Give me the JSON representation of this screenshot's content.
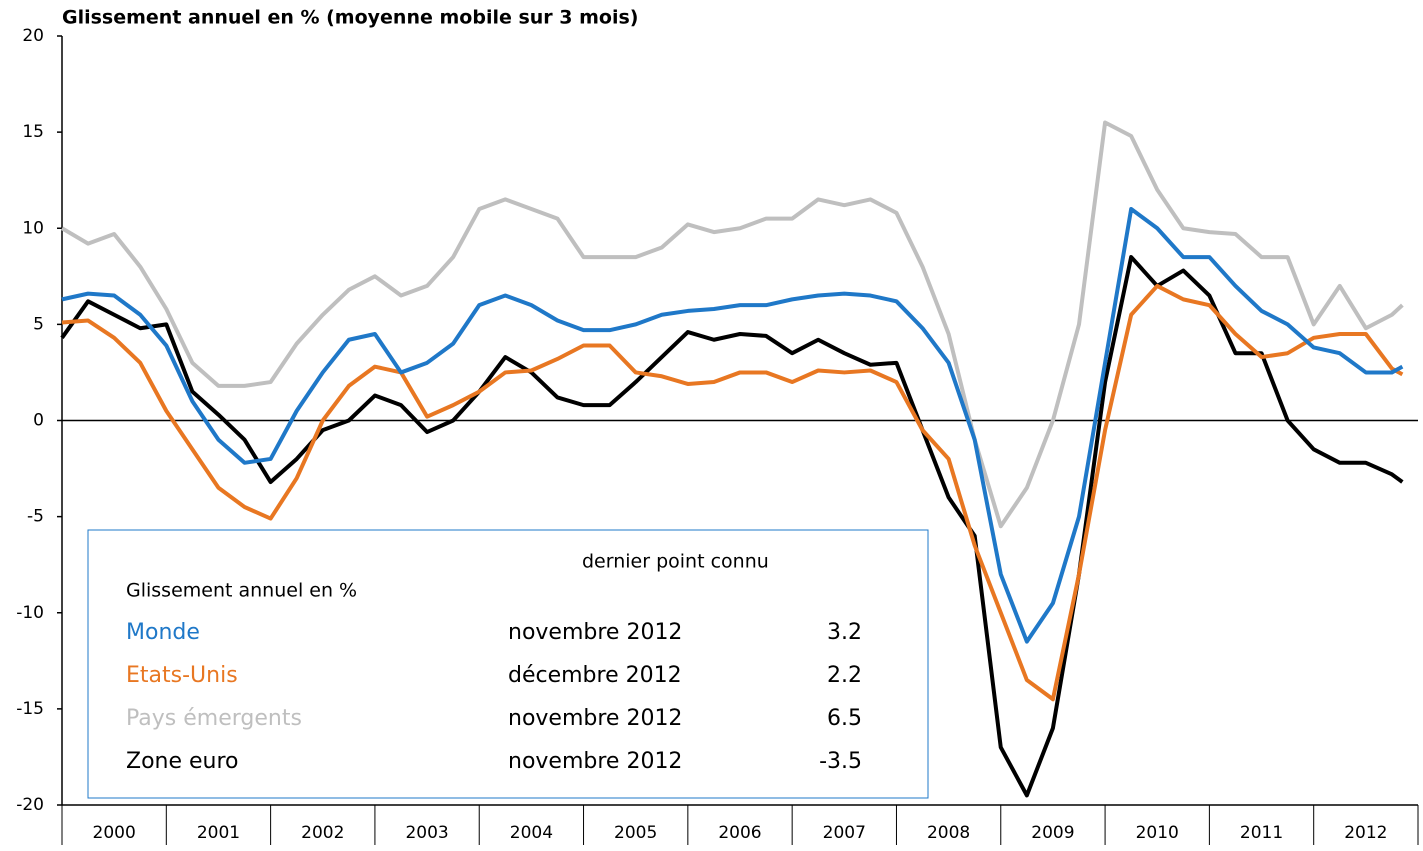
{
  "chart_data": {
    "type": "line",
    "title": "Glissement annuel en %  (moyenne mobile sur 3 mois)",
    "categories": [
      "2000",
      "2001",
      "2002",
      "2003",
      "2004",
      "2005",
      "2006",
      "2007",
      "2008",
      "2009",
      "2010",
      "2011",
      "2012"
    ],
    "x": [
      2000,
      2000.25,
      2000.5,
      2000.75,
      2001,
      2001.25,
      2001.5,
      2001.75,
      2002,
      2002.25,
      2002.5,
      2002.75,
      2003,
      2003.25,
      2003.5,
      2003.75,
      2004,
      2004.25,
      2004.5,
      2004.75,
      2005,
      2005.25,
      2005.5,
      2005.75,
      2006,
      2006.25,
      2006.5,
      2006.75,
      2007,
      2007.25,
      2007.5,
      2007.75,
      2008,
      2008.25,
      2008.5,
      2008.75,
      2009,
      2009.25,
      2009.5,
      2009.75,
      2010,
      2010.25,
      2010.5,
      2010.75,
      2011,
      2011.25,
      2011.5,
      2011.75,
      2012,
      2012.25,
      2012.5,
      2012.75,
      2012.85
    ],
    "series": [
      {
        "name": "Monde",
        "color": "#1f78c8",
        "values": [
          6.3,
          6.6,
          6.5,
          5.5,
          3.9,
          1.0,
          -1.0,
          -2.2,
          -2.0,
          0.5,
          2.5,
          4.2,
          4.5,
          2.5,
          3.0,
          4.0,
          6.0,
          6.5,
          6.0,
          5.2,
          4.7,
          4.7,
          5.0,
          5.5,
          5.7,
          5.8,
          6.0,
          6.0,
          6.3,
          6.5,
          6.6,
          6.5,
          6.2,
          4.8,
          3.0,
          -1.0,
          -8.0,
          -11.5,
          -9.5,
          -5.0,
          3.0,
          11.0,
          10.0,
          8.5,
          8.5,
          7.0,
          5.7,
          5.0,
          3.8,
          3.5,
          2.5,
          2.5,
          2.8
        ]
      },
      {
        "name": "Etats-Unis",
        "color": "#e87722",
        "values": [
          5.1,
          5.2,
          4.3,
          3.0,
          0.5,
          -1.5,
          -3.5,
          -4.5,
          -5.1,
          -3.0,
          0.0,
          1.8,
          2.8,
          2.5,
          0.2,
          0.8,
          1.5,
          2.5,
          2.6,
          3.2,
          3.9,
          3.9,
          2.5,
          2.3,
          1.9,
          2.0,
          2.5,
          2.5,
          2.0,
          2.6,
          2.5,
          2.6,
          2.0,
          -0.5,
          -2.0,
          -6.5,
          -10.0,
          -13.5,
          -14.5,
          -8.0,
          -0.5,
          5.5,
          7.0,
          6.3,
          6.0,
          4.5,
          3.3,
          3.5,
          4.3,
          4.5,
          4.5,
          2.7,
          2.4
        ]
      },
      {
        "name": "Pays émergents",
        "color": "#bfbfbf",
        "values": [
          10.0,
          9.2,
          9.7,
          8.0,
          5.8,
          3.0,
          1.8,
          1.8,
          2.0,
          4.0,
          5.5,
          6.8,
          7.5,
          6.5,
          7.0,
          8.5,
          11.0,
          11.5,
          11.0,
          10.5,
          8.5,
          8.5,
          8.5,
          9.0,
          10.2,
          9.8,
          10.0,
          10.5,
          10.5,
          11.5,
          11.2,
          11.5,
          10.8,
          8.0,
          4.5,
          -1.0,
          -5.5,
          -3.5,
          0.0,
          5.0,
          15.5,
          14.8,
          12.0,
          10.0,
          9.8,
          9.7,
          8.5,
          8.5,
          5.0,
          7.0,
          4.8,
          5.5,
          6.0
        ]
      },
      {
        "name": "Zone euro",
        "color": "#000000",
        "values": [
          4.3,
          6.2,
          5.5,
          4.8,
          5.0,
          1.5,
          0.3,
          -1.0,
          -3.2,
          -2.0,
          -0.5,
          0.0,
          1.3,
          0.8,
          -0.6,
          0.0,
          1.5,
          3.3,
          2.5,
          1.2,
          0.8,
          0.8,
          2.0,
          3.3,
          4.6,
          4.2,
          4.5,
          4.4,
          3.5,
          4.2,
          3.5,
          2.9,
          3.0,
          -0.5,
          -4.0,
          -6.0,
          -17.0,
          -19.5,
          -16.0,
          -8.0,
          2.0,
          8.5,
          7.0,
          7.8,
          6.5,
          3.5,
          3.5,
          0.0,
          -1.5,
          -2.2,
          -2.2,
          -2.8,
          -3.2
        ]
      }
    ],
    "xlim": [
      2000,
      2013
    ],
    "xticks": [
      2000,
      2001,
      2002,
      2003,
      2004,
      2005,
      2006,
      2007,
      2008,
      2009,
      2010,
      2011,
      2012,
      2013
    ],
    "ylim": [
      -20,
      20
    ],
    "yticks": [
      -20,
      -15,
      -10,
      -5,
      0,
      5,
      10,
      15,
      20
    ],
    "legend_box": {
      "header": "dernier point connu",
      "title": "Glissement annuel en %",
      "dates": [
        "novembre 2012",
        "décembre 2012",
        "novembre 2012",
        "novembre 2012"
      ],
      "values": [
        "3.2",
        "2.2",
        "6.5",
        "-3.5"
      ]
    }
  }
}
